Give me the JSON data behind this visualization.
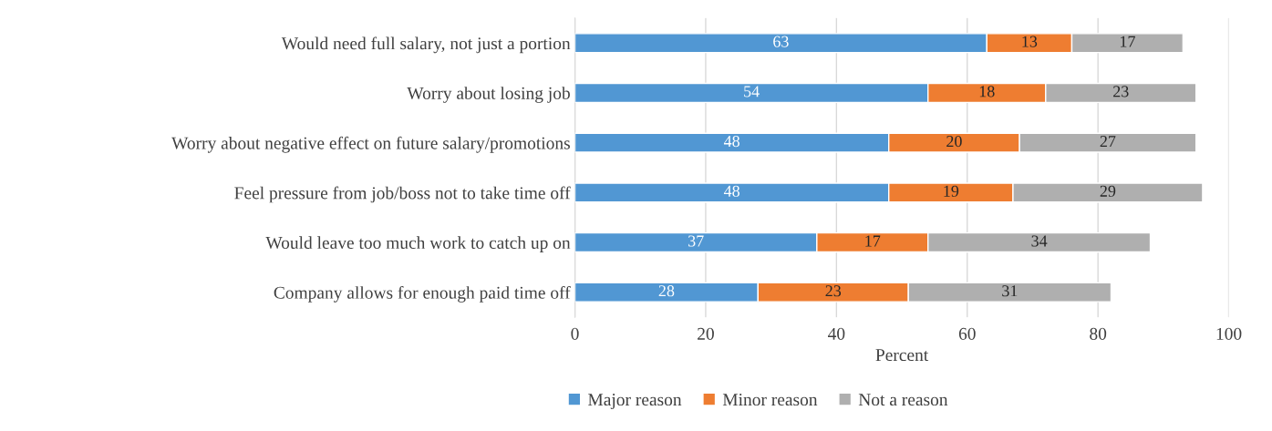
{
  "chart_data": {
    "type": "bar",
    "orientation": "horizontal",
    "stacked": true,
    "xlabel": "Percent",
    "categories": [
      "Would need full salary, not just a portion",
      "Worry about losing job",
      "Worry about negative effect on future salary/promotions",
      "Feel pressure from job/boss not to take time off",
      "Would leave too much work to catch up on",
      "Company allows for enough paid time off"
    ],
    "series": [
      {
        "name": "Major reason",
        "color": "#5197d3",
        "values": [
          63,
          54,
          48,
          48,
          37,
          28
        ]
      },
      {
        "name": "Minor reason",
        "color": "#ee7d31",
        "values": [
          13,
          18,
          20,
          19,
          17,
          23
        ]
      },
      {
        "name": "Not a reason",
        "color": "#afafaf",
        "values": [
          17,
          23,
          27,
          29,
          34,
          31
        ]
      }
    ],
    "xlim": [
      0,
      100
    ],
    "xticks": [
      0,
      20,
      40,
      60,
      80,
      100
    ],
    "grid": "x",
    "legend": "bottom",
    "data_labels": true
  }
}
